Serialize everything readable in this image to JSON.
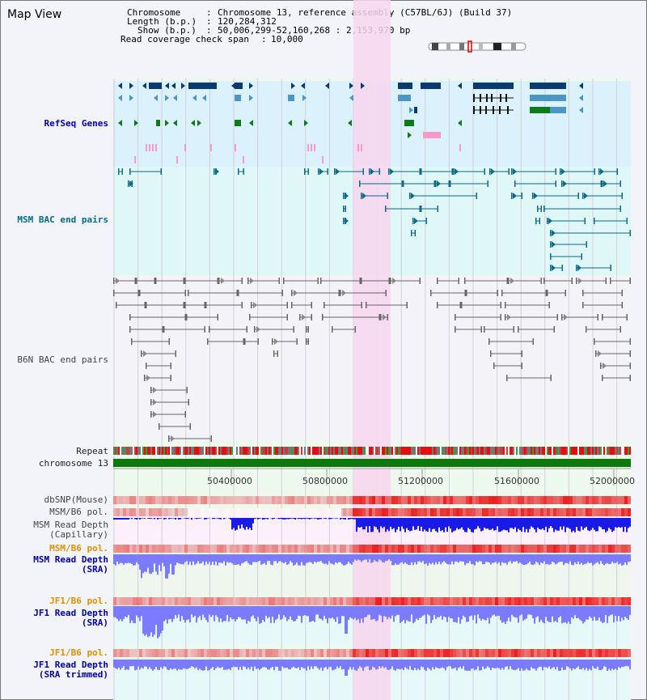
{
  "title": "Map View",
  "header": {
    "chromosome_label": "Chromosome",
    "chromosome_value": "Chromosome 13, reference assembly (C57BL/6J) (Build 37)",
    "length_label": "Length (b.p.)",
    "length_value": "120,284,312",
    "show_label": "Show (b.p.)",
    "show_value": "50,006,299-52,160,268 : 2,153,970 bp",
    "span_label": "Read coverage check span",
    "span_value": "10,000"
  },
  "tracks": {
    "refseq": "RefSeq Genes",
    "msm_bac": "MSM BAC end pairs",
    "b6n_bac": "B6N BAC end pairs",
    "repeat": "Repeat",
    "chromosome": "chromosome 13",
    "dbsnp": "dbSNP(Mouse)",
    "msm_b6_pol_1": "MSM/B6 pol.",
    "msm_depth_cap_1": "MSM Read Depth",
    "msm_depth_cap_2": "(Capillary)",
    "msm_b6_pol_2": "MSM/B6 pol.",
    "msm_depth_sra_1": "MSM Read Depth",
    "msm_depth_sra_2": "(SRA)",
    "jf1_b6_pol_1": "JF1/B6 pol.",
    "jf1_depth_sra_1": "JF1 Read Depth",
    "jf1_depth_sra_2": "(SRA)",
    "jf1_b6_pol_2": "JF1/B6 pol.",
    "jf1_depth_trim_1": "JF1 Read Depth",
    "jf1_depth_trim_2": "(SRA trimmed)"
  },
  "axis": {
    "ticks": [
      "50400000",
      "50800000",
      "51200000",
      "51600000",
      "52000000"
    ]
  },
  "colors": {
    "highlight": "#f7d6ee",
    "refseq_bg": "#dbf1fb",
    "bac_bg": "#e0f7f7",
    "gene_dark": "#0a3a6e",
    "gene_mid": "#4b96c3",
    "gene_green": "#0e7a1c",
    "bac_teal": "#0c6a8a",
    "b6n_gray": "#666666",
    "chromosome": "#0b7a0b",
    "depth_dark": "#1a1ae6",
    "depth_light": "#7b7bff"
  }
}
